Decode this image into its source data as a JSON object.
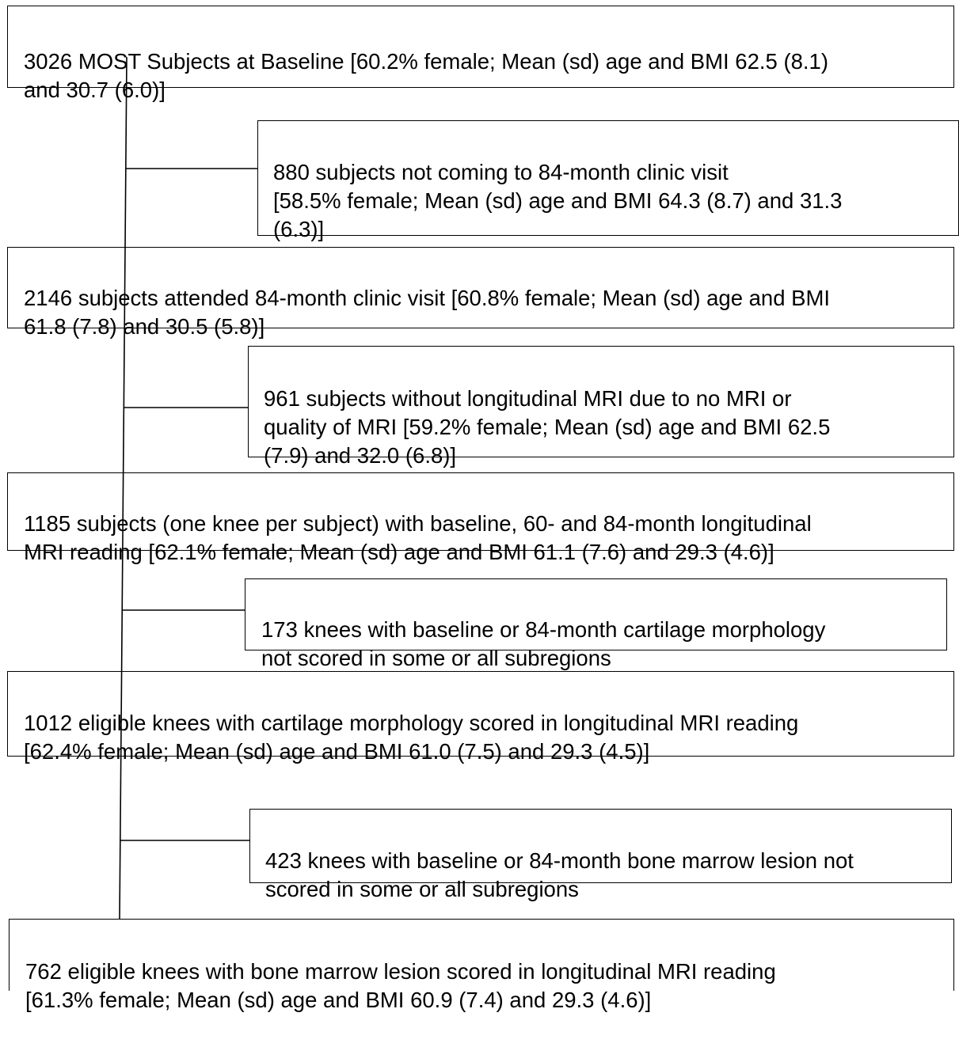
{
  "boxes": {
    "baseline": {
      "text": "3026 MOST Subjects at Baseline [60.2% female; Mean (sd) age and BMI 62.5 (8.1)\nand 30.7 (6.0)]"
    },
    "excluded_clinic": {
      "text": "880 subjects not coming to 84-month clinic visit\n[58.5% female; Mean (sd) age and BMI 64.3 (8.7) and 31.3\n(6.3)]"
    },
    "attended": {
      "text": "2146 subjects attended 84-month clinic visit [60.8% female; Mean (sd) age and BMI\n61.8 (7.8) and 30.5 (5.8)]"
    },
    "excluded_mri": {
      "text": "961 subjects without longitudinal MRI due to no MRI or\nquality of MRI [59.2% female; Mean (sd) age and BMI 62.5\n(7.9) and 32.0 (6.8)]"
    },
    "longitudinal": {
      "text": "1185 subjects (one knee per subject) with baseline, 60- and 84-month longitudinal\nMRI reading [62.1% female; Mean (sd) age and BMI 61.1 (7.6) and 29.3 (4.6)]"
    },
    "excluded_cartilage": {
      "text": "173 knees with baseline or 84-month cartilage morphology\nnot scored in some or all subregions"
    },
    "cartilage": {
      "text": "1012 eligible knees with cartilage morphology scored in longitudinal MRI reading\n[62.4% female; Mean (sd) age and BMI 61.0 (7.5) and 29.3 (4.5)]"
    },
    "excluded_bml": {
      "text": "423 knees with baseline or 84-month bone marrow lesion not\nscored in some or all subregions"
    },
    "bml": {
      "text": "762 eligible knees with bone marrow lesion scored in longitudinal MRI reading\n[61.3% female; Mean (sd) age and BMI 60.9 (7.4) and 29.3 (4.6)]"
    }
  }
}
